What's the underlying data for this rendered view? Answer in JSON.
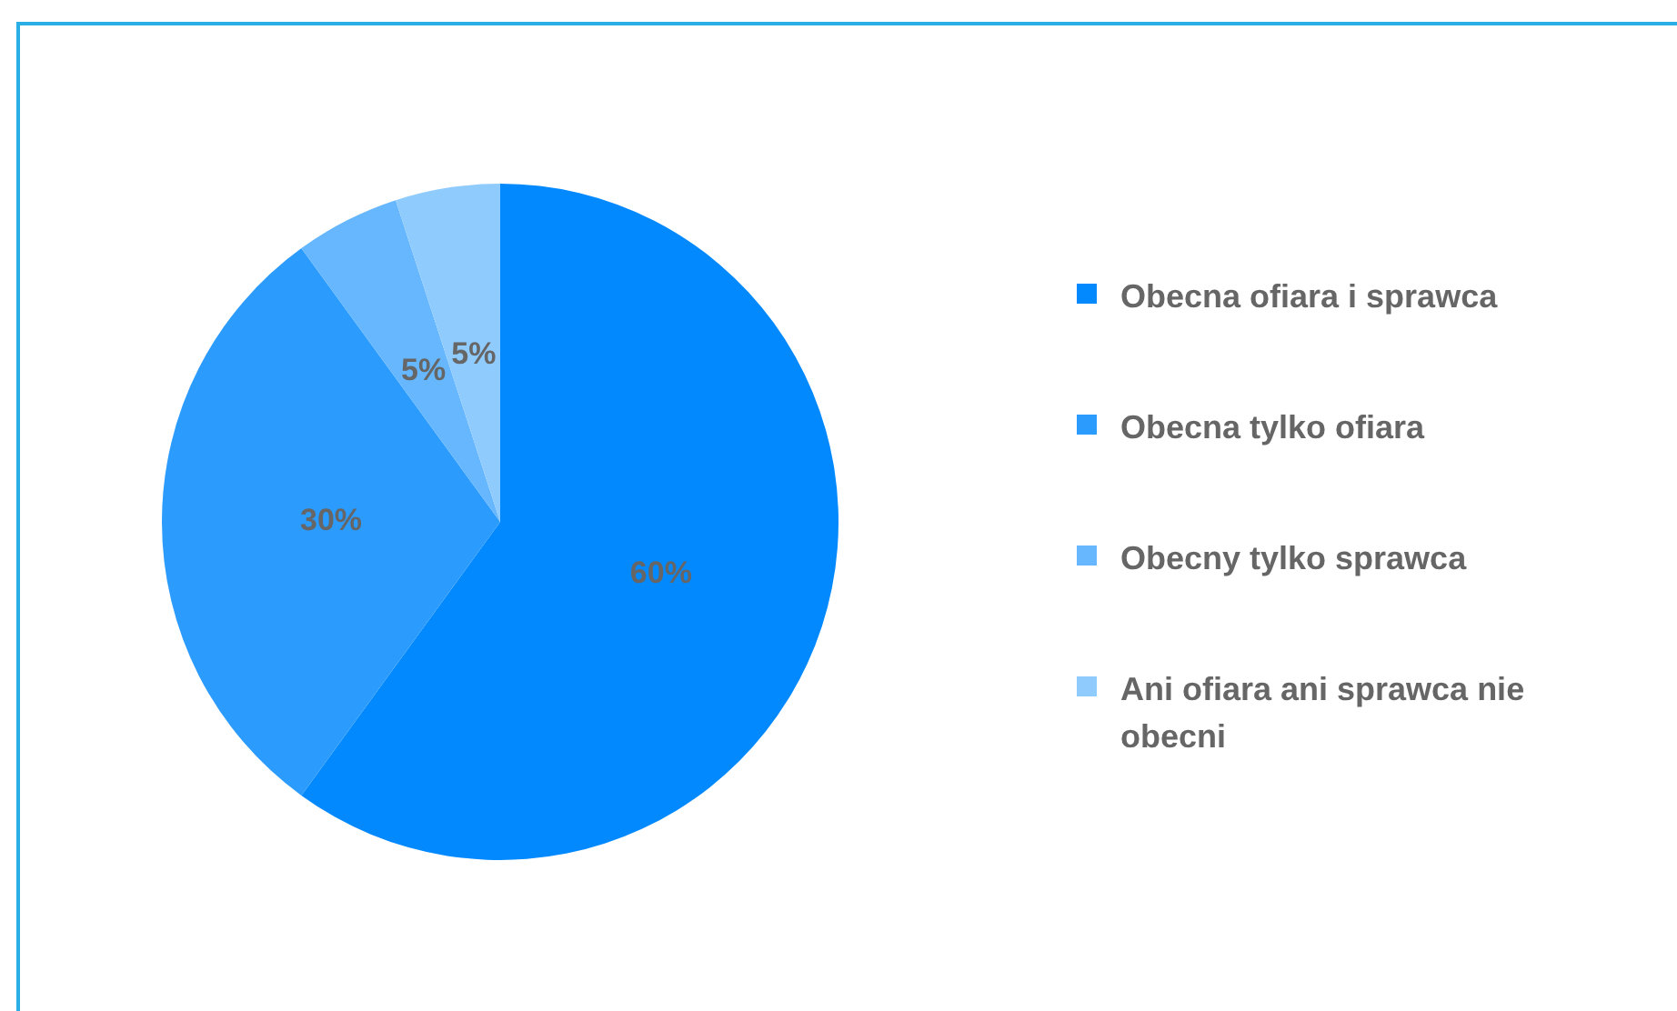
{
  "chart_data": {
    "type": "pie",
    "categories": [
      "Obecna ofiara i sprawca",
      "Obecna tylko ofiara",
      "Obecny tylko sprawca",
      "Ani ofiara ani sprawca nie obecni"
    ],
    "values": [
      60,
      30,
      5,
      5
    ],
    "colors": [
      "#0389fe",
      "#2b9bfe",
      "#66b7fe",
      "#90cbfe"
    ],
    "value_labels": [
      "60%",
      "30%",
      "5%",
      "5%"
    ],
    "legend": "right"
  }
}
